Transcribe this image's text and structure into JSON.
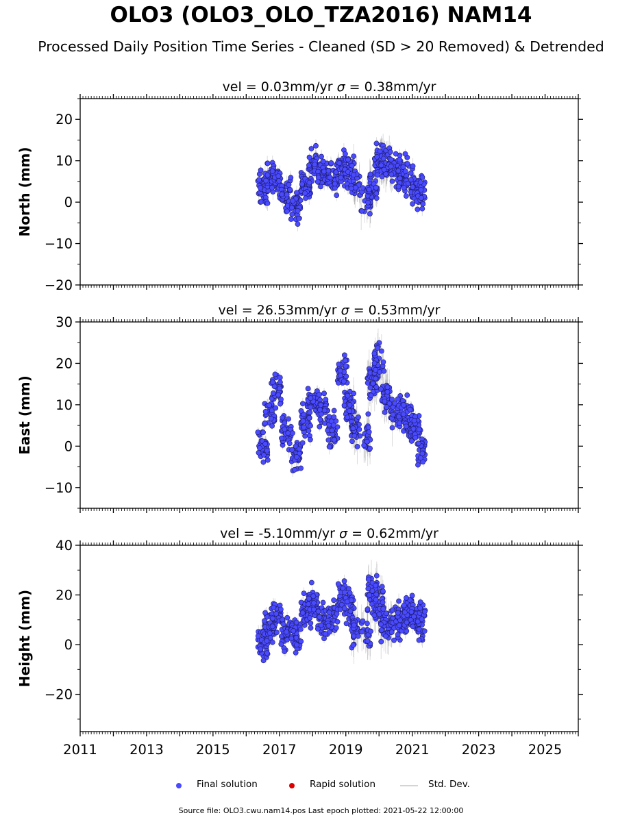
{
  "title": "OLO3 (OLO3_OLO_TZA2016) NAM14",
  "subtitle": "Processed Daily Position Time Series - Cleaned (SD > 20 Removed) & Detrended",
  "colors": {
    "final": "#4a4aff",
    "final_edge": "#1a1a66",
    "rapid": "#dd0000",
    "stddev": "#c8c8c8"
  },
  "legend": [
    {
      "label": "Final solution",
      "type": "dot",
      "color": "#4a4aff"
    },
    {
      "label": "Rapid solution",
      "type": "dot",
      "color": "#dd0000"
    },
    {
      "label": "Std. Dev.",
      "type": "line",
      "color": "#d4d4d4"
    }
  ],
  "source": "Source file: OLO3.cwu.nam14.pos  Last epoch plotted: 2021-05-22 12:00:00",
  "chart_data": [
    {
      "type": "scatter",
      "title": "vel = 0.03mm/yr   σ = 0.38mm/yr",
      "vel_text": "vel = 0.03mm/yr",
      "sigma_text": "= 0.38mm/yr",
      "ylabel": "North (mm)",
      "xlim": [
        2011,
        2026
      ],
      "ylim": [
        -20,
        25
      ],
      "yticks": [
        -20,
        -10,
        0,
        10,
        20
      ],
      "ytick_labels": [
        "−20",
        "−10",
        "0",
        "10",
        "20"
      ],
      "grid": false,
      "series": [
        {
          "values": [
            [
              2016.5,
              3
            ],
            [
              2016.7,
              6
            ],
            [
              2016.9,
              5
            ],
            [
              2017.2,
              2
            ],
            [
              2017.5,
              -1
            ],
            [
              2017.8,
              4
            ],
            [
              2018.0,
              9
            ],
            [
              2018.3,
              7
            ],
            [
              2018.6,
              6
            ],
            [
              2018.9,
              8
            ],
            [
              2019.1,
              7
            ],
            [
              2019.3,
              4
            ],
            [
              2019.6,
              0
            ],
            [
              2019.8,
              3
            ],
            [
              2020.0,
              10
            ],
            [
              2020.2,
              9
            ],
            [
              2020.5,
              8
            ],
            [
              2020.7,
              7
            ],
            [
              2020.9,
              5
            ],
            [
              2021.1,
              4
            ],
            [
              2021.3,
              2
            ]
          ]
        }
      ]
    },
    {
      "type": "scatter",
      "title": "vel = 26.53mm/yr   σ = 0.53mm/yr",
      "vel_text": "vel = 26.53mm/yr",
      "sigma_text": "= 0.53mm/yr",
      "ylabel": "East (mm)",
      "xlim": [
        2011,
        2026
      ],
      "ylim": [
        -15,
        30
      ],
      "yticks": [
        -10,
        0,
        10,
        20,
        30
      ],
      "ytick_labels": [
        "−10",
        "0",
        "10",
        "20",
        "30"
      ],
      "grid": false,
      "series": [
        {
          "values": [
            [
              2016.5,
              0
            ],
            [
              2016.7,
              8
            ],
            [
              2016.9,
              14
            ],
            [
              2017.2,
              4
            ],
            [
              2017.5,
              -2
            ],
            [
              2017.8,
              6
            ],
            [
              2018.0,
              11
            ],
            [
              2018.3,
              9
            ],
            [
              2018.6,
              4
            ],
            [
              2018.9,
              18
            ],
            [
              2019.1,
              10
            ],
            [
              2019.3,
              4
            ],
            [
              2019.6,
              2
            ],
            [
              2019.8,
              15
            ],
            [
              2020.0,
              20
            ],
            [
              2020.2,
              12
            ],
            [
              2020.5,
              8
            ],
            [
              2020.7,
              8
            ],
            [
              2020.9,
              6
            ],
            [
              2021.1,
              4
            ],
            [
              2021.3,
              -1
            ]
          ]
        }
      ]
    },
    {
      "type": "scatter",
      "title": "vel = -5.10mm/yr   σ = 0.62mm/yr",
      "vel_text": "vel = -5.10mm/yr",
      "sigma_text": "= 0.62mm/yr",
      "ylabel": "Height (mm)",
      "xlim": [
        2011,
        2026
      ],
      "ylim": [
        -35,
        40
      ],
      "yticks": [
        -20,
        0,
        20,
        40
      ],
      "ytick_labels": [
        "−20",
        "0",
        "20",
        "40"
      ],
      "xtick_labels": [
        "2011",
        "2013",
        "2015",
        "2017",
        "2019",
        "2021",
        "2023",
        "2025"
      ],
      "grid": false,
      "series": [
        {
          "values": [
            [
              2016.5,
              0
            ],
            [
              2016.7,
              7
            ],
            [
              2016.9,
              12
            ],
            [
              2017.2,
              5
            ],
            [
              2017.5,
              3
            ],
            [
              2017.8,
              14
            ],
            [
              2018.0,
              16
            ],
            [
              2018.3,
              9
            ],
            [
              2018.6,
              11
            ],
            [
              2018.9,
              19
            ],
            [
              2019.1,
              15
            ],
            [
              2019.3,
              6
            ],
            [
              2019.6,
              5
            ],
            [
              2019.8,
              21
            ],
            [
              2020.0,
              15
            ],
            [
              2020.2,
              7
            ],
            [
              2020.5,
              9
            ],
            [
              2020.7,
              10
            ],
            [
              2020.9,
              13
            ],
            [
              2021.1,
              11
            ],
            [
              2021.3,
              9
            ]
          ]
        }
      ]
    }
  ]
}
